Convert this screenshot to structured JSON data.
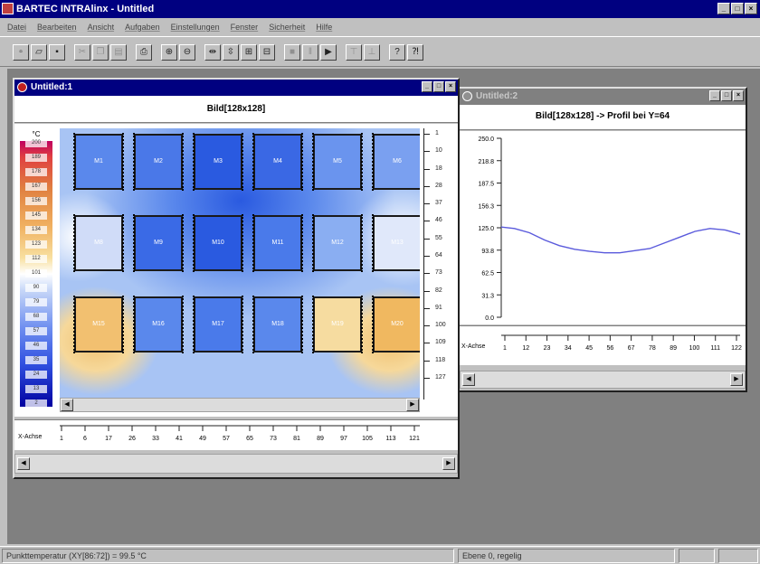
{
  "app": {
    "title": "BARTEC INTRAlinx - Untitled"
  },
  "menu": [
    "Datei",
    "Bearbeiten",
    "Ansicht",
    "Aufgaben",
    "Einstellungen",
    "Fenster",
    "Sicherheit",
    "Hilfe"
  ],
  "window1": {
    "title": "Untitled:1",
    "header": "Bild[128x128]",
    "legend": {
      "unit": "°C",
      "labels": [
        "200",
        "189",
        "178",
        "167",
        "156",
        "145",
        "134",
        "123",
        "112",
        "101",
        "90",
        "79",
        "68",
        "57",
        "46",
        "35",
        "24",
        "13",
        "2"
      ]
    },
    "sensors": [
      [
        "M1",
        "M2",
        "M3",
        "M4",
        "M5",
        "M6"
      ],
      [
        "M8",
        "M9",
        "M10",
        "M11",
        "M12",
        "M13"
      ],
      [
        "M15",
        "M16",
        "M17",
        "M18",
        "M19",
        "M20"
      ]
    ],
    "x_axis": {
      "label": "X-Achse",
      "ticks": [
        "1",
        "6",
        "17",
        "26",
        "33",
        "41",
        "49",
        "57",
        "65",
        "73",
        "81",
        "89",
        "97",
        "105",
        "113",
        "121"
      ]
    },
    "y_axis_ticks": [
      "1",
      "10",
      "18",
      "28",
      "37",
      "46",
      "55",
      "64",
      "73",
      "82",
      "91",
      "100",
      "109",
      "118",
      "127"
    ]
  },
  "window2": {
    "title": "Untitled:2",
    "header": "Bild[128x128] -> Profil bei Y=64",
    "x_axis": {
      "label": "X-Achse",
      "ticks": [
        "1",
        "12",
        "23",
        "34",
        "45",
        "56",
        "67",
        "78",
        "89",
        "100",
        "111",
        "122"
      ]
    },
    "chart_data": {
      "type": "line",
      "title": "Bild[128x128] -> Profil bei Y=64",
      "xlabel": "X-Achse",
      "ylabel": "",
      "yticks": [
        "250.0",
        "218.8",
        "187.5",
        "156.3",
        "125.0",
        "93.8",
        "62.5",
        "31.3",
        "0.0"
      ],
      "ylim": [
        0,
        250
      ],
      "xlim": [
        1,
        128
      ],
      "series": [
        {
          "x": [
            1,
            8,
            16,
            24,
            32,
            40,
            48,
            56,
            64,
            72,
            80,
            88,
            96,
            104,
            112,
            120,
            128
          ],
          "y": [
            126,
            124,
            118,
            108,
            100,
            95,
            92,
            90,
            90,
            93,
            96,
            104,
            112,
            120,
            124,
            122,
            116
          ]
        }
      ],
      "color": "#5a5adc"
    }
  },
  "status": {
    "left": "Punkttemperatur (XY[86:72]) = 99.5 °C",
    "middle": "Ebene 0, regelig"
  }
}
